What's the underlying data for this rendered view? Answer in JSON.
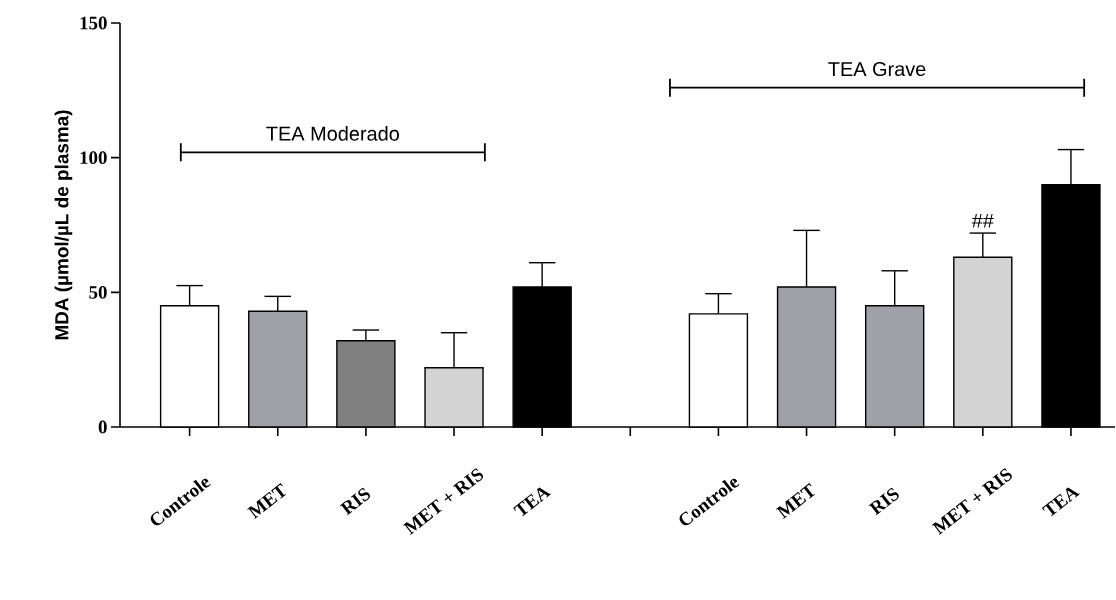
{
  "chart_data": {
    "type": "bar",
    "ylabel": "MDA (µmol/µL de plasma)",
    "categories": [
      "Controle",
      "MET",
      "RIS",
      "MET + RIS",
      "TEA",
      null,
      "Controle",
      "MET",
      "RIS",
      "MET + RIS",
      "TEA"
    ],
    "values": [
      45,
      43,
      32,
      22,
      52,
      null,
      42,
      52,
      45,
      63,
      90
    ],
    "errors": [
      [
        45,
        52.5
      ],
      [
        43,
        48.5
      ],
      [
        32,
        36
      ],
      [
        22,
        35
      ],
      [
        52,
        61
      ],
      null,
      [
        42,
        49.5
      ],
      [
        52,
        73
      ],
      [
        45,
        58
      ],
      [
        63,
        72
      ],
      [
        90,
        103
      ]
    ],
    "colors": [
      "#ffffff",
      "#a0a0a8",
      "#808080",
      "#d3d3d3",
      "#000000",
      null,
      "#ffffff",
      "#a0a0a8",
      "#a0a0a8",
      "#d3d3d3",
      "#000000"
    ],
    "ylim": [
      0,
      150
    ],
    "yticks": [
      0,
      50,
      100,
      150
    ],
    "annotations": [
      "TEA Moderado",
      "TEA Grave",
      "##"
    ]
  }
}
